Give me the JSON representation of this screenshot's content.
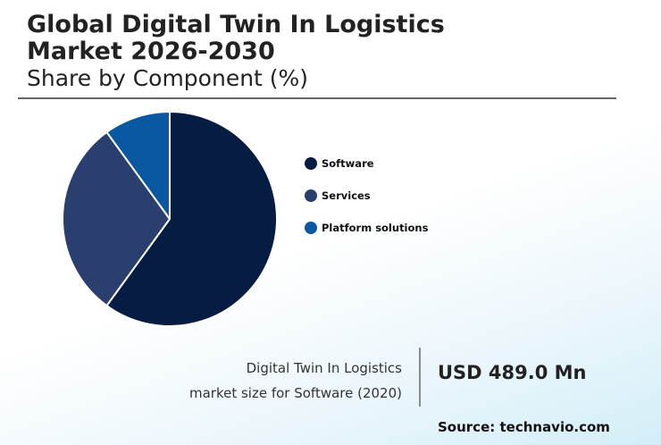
{
  "header": {
    "title": "Global Digital Twin In Logistics Market 2026-2030",
    "subtitle": "Share by Component (%)"
  },
  "chart_data": {
    "type": "pie",
    "title": "Global Digital Twin In Logistics Market 2026-2030",
    "subtitle": "Share by Component (%)",
    "categories": [
      "Software",
      "Services",
      "Platform solutions"
    ],
    "values": [
      60,
      30,
      10
    ],
    "colors": [
      "#071c42",
      "#2a3f6e",
      "#0a57a2"
    ],
    "start_angle_deg": 0,
    "direction": "clockwise",
    "legend_position": "right"
  },
  "stat": {
    "caption_line1": "Digital Twin In Logistics",
    "caption_line2": "market size for Software (2020)",
    "value": "USD 489.0 Mn"
  },
  "footer": {
    "source": "Source: technavio.com"
  }
}
